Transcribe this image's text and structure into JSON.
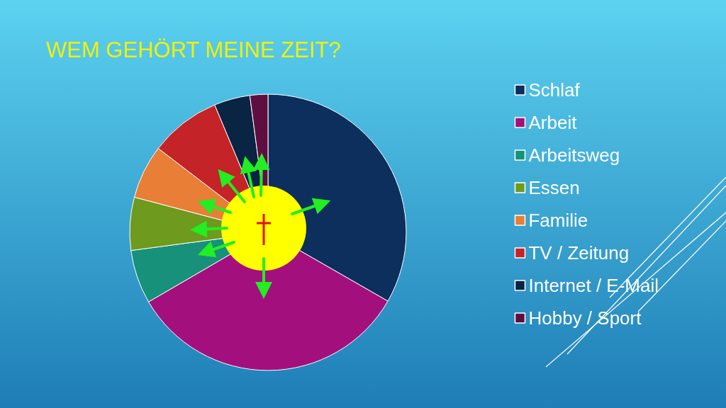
{
  "chart_data": {
    "type": "pie",
    "title": "WEM GEHÖRT MEINE ZEIT?",
    "categories": [
      "Schlaf",
      "Arbeit",
      "Arbeitsweg",
      "Essen",
      "Familie",
      "TV / Zeitung",
      "Internet / E-Mail",
      "Hobby / Sport"
    ],
    "values": [
      33.3,
      33.3,
      6.3,
      6.2,
      6.3,
      8.3,
      4.2,
      2.1
    ],
    "colors": [
      "#0d2f5e",
      "#a3107e",
      "#17917a",
      "#6e9a1e",
      "#e97e37",
      "#c42327",
      "#0a2444",
      "#5e0f3f"
    ],
    "legend": "right"
  }
}
